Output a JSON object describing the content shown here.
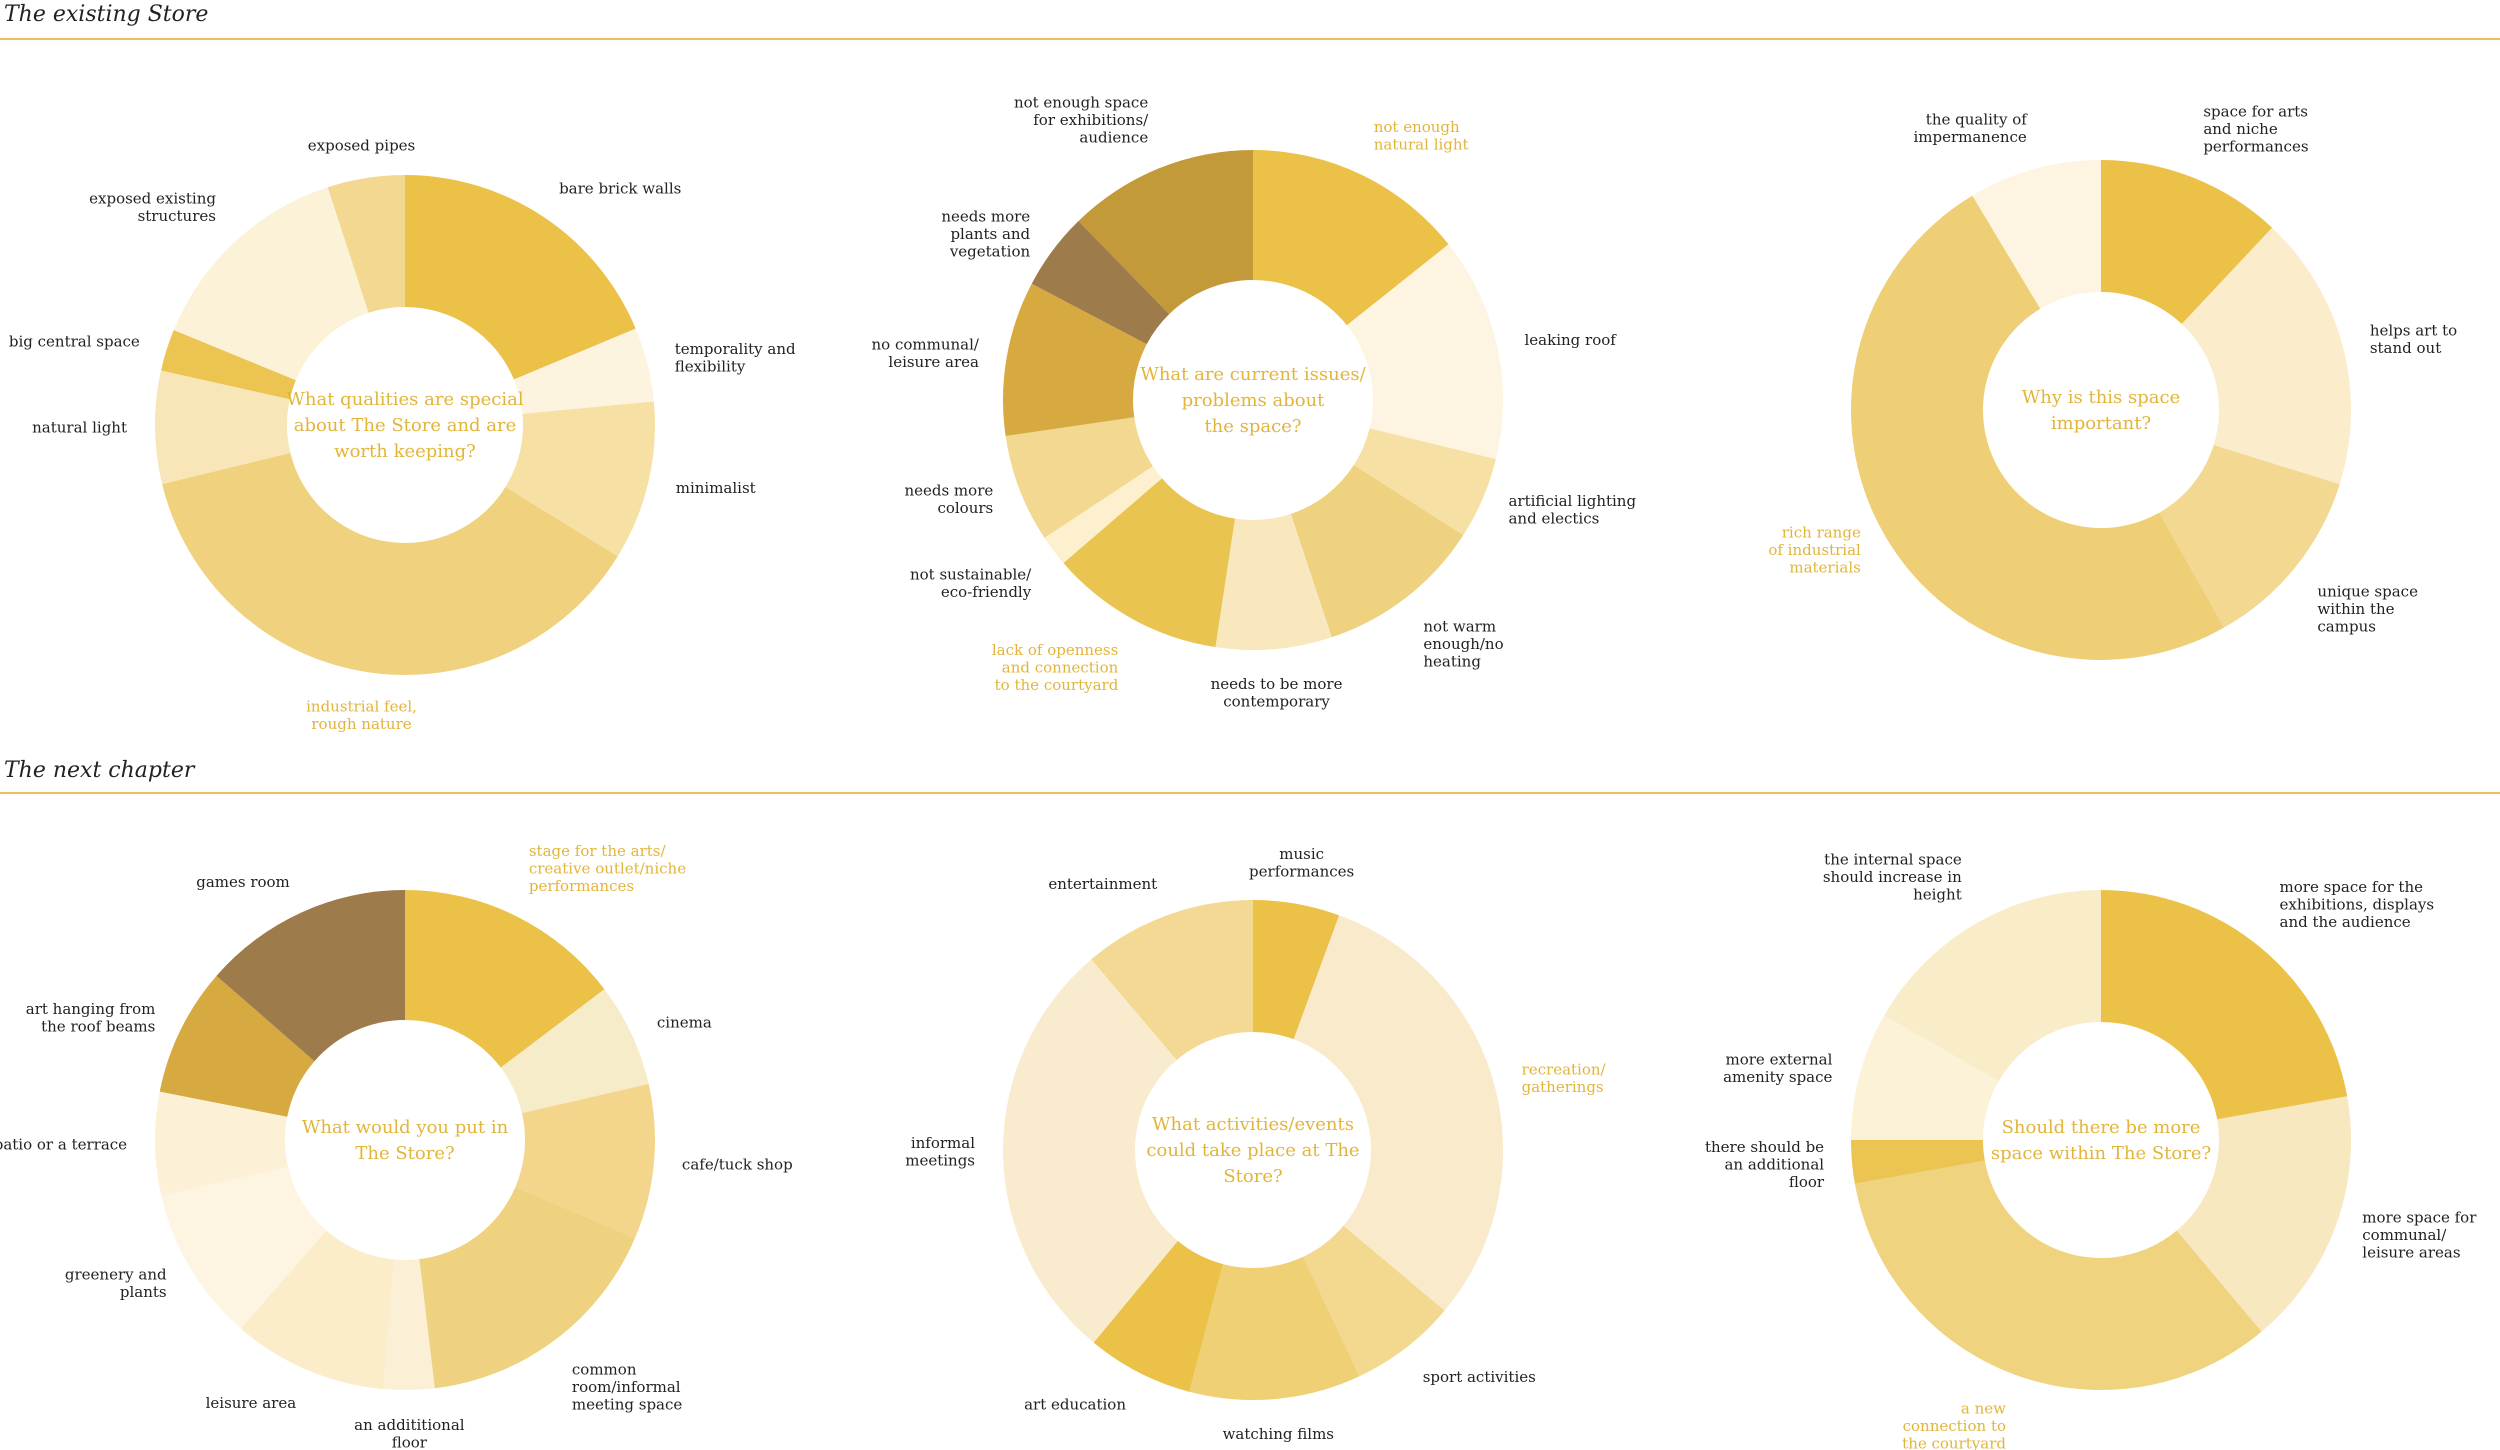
{
  "sections": [
    {
      "title": "The existing Store"
    },
    {
      "title": "The next chapter"
    }
  ],
  "chart_data": [
    {
      "type": "pie",
      "donut": true,
      "question": [
        "What qualities are special",
        "about The Store and are",
        "worth keeping?"
      ],
      "slices": [
        {
          "label": [
            "bare brick walls"
          ],
          "value": 0.187,
          "color": "#ebc147"
        },
        {
          "label": [
            "temporality and",
            "flexibility"
          ],
          "value": 0.048,
          "color": "#fcf4de"
        },
        {
          "label": [
            "minimalist"
          ],
          "value": 0.103,
          "color": "#f6e0a4"
        },
        {
          "label": [
            "industrial feel,",
            "rough nature"
          ],
          "value": 0.374,
          "color": "#efd17e",
          "highlight": true
        },
        {
          "label": [
            "natural light"
          ],
          "value": 0.073,
          "color": "#f8e6b8"
        },
        {
          "label": [
            "big central space"
          ],
          "value": 0.027,
          "color": "#ecc452"
        },
        {
          "label": [
            "exposed existing",
            "structures"
          ],
          "value": 0.138,
          "color": "#fcf2d8"
        },
        {
          "label": [
            "exposed pipes"
          ],
          "value": 0.05,
          "color": "#f2d891"
        }
      ]
    },
    {
      "type": "pie",
      "donut": true,
      "question": [
        "What are current issues/",
        "problems about",
        "the space?"
      ],
      "slices": [
        {
          "label": [
            "not enough",
            "natural light"
          ],
          "value": 0.143,
          "color": "#ebc147",
          "highlight": true
        },
        {
          "label": [
            "leaking roof"
          ],
          "value": 0.145,
          "color": "#fdf5e1"
        },
        {
          "label": [
            "artificial lighting",
            "and electics"
          ],
          "value": 0.053,
          "color": "#f6e0a4"
        },
        {
          "label": [
            "not warm",
            "enough/no",
            "heating"
          ],
          "value": 0.108,
          "color": "#efd27f"
        },
        {
          "label": [
            "needs to be more",
            "contemporary"
          ],
          "value": 0.075,
          "color": "#f9e8bd"
        },
        {
          "label": [
            "lack of openness",
            "and connection",
            "to the courtyard"
          ],
          "value": 0.113,
          "color": "#eac450",
          "highlight": true
        },
        {
          "label": [
            "not sustainable/",
            "eco-friendly"
          ],
          "value": 0.02,
          "color": "#fcf0cf"
        },
        {
          "label": [
            "needs more",
            "colours"
          ],
          "value": 0.07,
          "color": "#f2d891"
        },
        {
          "label": [
            "no communal/",
            "leisure area"
          ],
          "value": 0.1,
          "color": "#d6aa40"
        },
        {
          "label": [
            "needs more",
            "plants and",
            "vegetation"
          ],
          "value": 0.05,
          "color": "#9e7b4b"
        },
        {
          "label": [
            "not enough space",
            "for exhibitions/",
            "audience"
          ],
          "value": 0.123,
          "color": "#c39a3a"
        }
      ]
    },
    {
      "type": "pie",
      "donut": true,
      "question": [
        "Why is this space",
        "important?"
      ],
      "slices": [
        {
          "label": [
            "space for arts",
            "and niche",
            "performances"
          ],
          "value": 0.12,
          "color": "#ebc147"
        },
        {
          "label": [
            "helps art to",
            "stand out"
          ],
          "value": 0.178,
          "color": "#fbeccc"
        },
        {
          "label": [
            "unique space",
            "within the",
            "campus"
          ],
          "value": 0.12,
          "color": "#f2d891"
        },
        {
          "label": [
            "rich range",
            "of industrial",
            "materials"
          ],
          "value": 0.496,
          "color": "#efcf75",
          "highlight": true
        },
        {
          "label": [
            "the quality of",
            "impermanence"
          ],
          "value": 0.086,
          "color": "#fdf5e1"
        }
      ]
    },
    {
      "type": "pie",
      "donut": true,
      "question": [
        "What would you put in",
        "The Store?"
      ],
      "slices": [
        {
          "label": [
            "stage for the arts/",
            "creative outlet/niche",
            "performances"
          ],
          "value": 0.147,
          "color": "#ebc147",
          "highlight": true
        },
        {
          "label": [
            "cinema"
          ],
          "value": 0.067,
          "color": "#f6ecca"
        },
        {
          "label": [
            "cafe/tuck shop"
          ],
          "value": 0.1,
          "color": "#f3d68b"
        },
        {
          "label": [
            "common",
            "room/informal",
            "meeting space"
          ],
          "value": 0.167,
          "color": "#efd27f"
        },
        {
          "label": [
            "an addititional",
            "floor"
          ],
          "value": 0.033,
          "color": "#fbf0d5"
        },
        {
          "label": [
            "leisure area"
          ],
          "value": 0.1,
          "color": "#fbecca"
        },
        {
          "label": [
            "greenery and",
            "plants"
          ],
          "value": 0.1,
          "color": "#fdf5e1"
        },
        {
          "label": [
            "patio or a terrace"
          ],
          "value": 0.067,
          "color": "#fcf1d6"
        },
        {
          "label": [
            "art hanging from",
            "the roof beams"
          ],
          "value": 0.083,
          "color": "#d6aa40"
        },
        {
          "label": [
            "games room"
          ],
          "value": 0.136,
          "color": "#9e7b4b"
        }
      ]
    },
    {
      "type": "pie",
      "donut": true,
      "question": [
        "What activities/events",
        "could take place at The",
        "Store?"
      ],
      "slices": [
        {
          "label": [
            "music",
            "performances"
          ],
          "value": 0.056,
          "color": "#ebc147"
        },
        {
          "label": [
            "recreation/",
            "gatherings"
          ],
          "value": 0.305,
          "color": "#f8eacb",
          "highlight": true
        },
        {
          "label": [
            "sport activities"
          ],
          "value": 0.069,
          "color": "#f3d98f"
        },
        {
          "label": [
            "watching films"
          ],
          "value": 0.111,
          "color": "#efd074"
        },
        {
          "label": [
            "art education"
          ],
          "value": 0.069,
          "color": "#ebc147"
        },
        {
          "label": [
            "informal",
            "meetings"
          ],
          "value": 0.278,
          "color": "#f9ecce"
        },
        {
          "label": [
            "entertainment"
          ],
          "value": 0.112,
          "color": "#f3d994"
        }
      ]
    },
    {
      "type": "pie",
      "donut": true,
      "question": [
        "Should there be more",
        "space within The Store?"
      ],
      "slices": [
        {
          "label": [
            "more space for the",
            "exhibitions, displays",
            "and the audience"
          ],
          "value": 0.222,
          "color": "#ebc147"
        },
        {
          "label": [
            "more space for",
            "communal/",
            "leisure areas"
          ],
          "value": 0.167,
          "color": "#f8e8c0"
        },
        {
          "label": [
            "a new",
            "connection to",
            "the courtyard"
          ],
          "value": 0.333,
          "color": "#f0d37f",
          "highlight": true
        },
        {
          "label": [
            "there should be",
            "an additional",
            "floor"
          ],
          "value": 0.028,
          "color": "#ecc452"
        },
        {
          "label": [
            "more external",
            "amenity space"
          ],
          "value": 0.083,
          "color": "#fcf2d8"
        },
        {
          "label": [
            "the internal space",
            "should increase in",
            "height"
          ],
          "value": 0.167,
          "color": "#f8ecc9"
        }
      ]
    }
  ]
}
